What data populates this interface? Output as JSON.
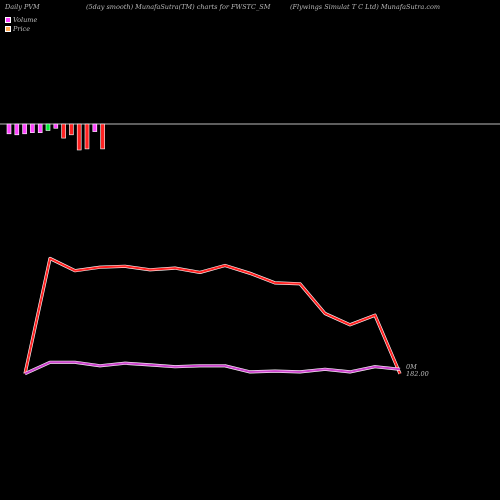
{
  "header": {
    "left": "Daily PVM",
    "center": "(5day smooth) MunafaSutra(TM) charts for FWSTC_SM",
    "right": "(Flywings Simulat T C Ltd) MunafaSutra.com"
  },
  "legend": [
    {
      "label": "Volume",
      "color": "#ff44ff"
    },
    {
      "label": "Price",
      "color": "#ffaa55"
    }
  ],
  "chart_data": {
    "type": "line",
    "x": [
      1,
      2,
      3,
      4,
      5,
      6,
      7,
      8,
      9,
      10,
      11,
      12,
      13,
      14,
      15,
      16
    ],
    "series": [
      {
        "color": "#ff2222",
        "values": [
          182.0,
          195.2,
          193.8,
          194.2,
          194.3,
          193.9,
          194.1,
          193.6,
          194.4,
          193.5,
          192.4,
          192.3,
          188.9,
          187.6,
          188.7,
          182.0
        ]
      },
      {
        "color": "#cc44cc",
        "values": [
          182.0,
          183.3,
          183.3,
          182.9,
          183.2,
          183.0,
          182.8,
          182.9,
          182.9,
          182.2,
          182.3,
          182.2,
          182.5,
          182.2,
          182.8,
          182.5
        ]
      }
    ],
    "ylim": [
      174.4,
      201.9
    ],
    "volume_bars": [
      {
        "value": -0.9,
        "color": "#ff44ff"
      },
      {
        "value": -1.0,
        "color": "#ff44ff"
      },
      {
        "value": -0.9,
        "color": "#ff44ff"
      },
      {
        "value": -0.8,
        "color": "#ff44ff"
      },
      {
        "value": -0.8,
        "color": "#ff44ff"
      },
      {
        "value": -0.6,
        "color": "#00ee33"
      },
      {
        "value": -0.4,
        "color": "#ff44ff"
      },
      {
        "value": -1.3,
        "color": "#ff2222"
      },
      {
        "value": -1.0,
        "color": "#ff2222"
      },
      {
        "value": -2.4,
        "color": "#ff2222"
      },
      {
        "value": -2.3,
        "color": "#ff2222"
      },
      {
        "value": -0.7,
        "color": "#ff44ff"
      },
      {
        "value": -2.3,
        "color": "#ff2222"
      }
    ],
    "volume_max": 2.4,
    "end_labels": {
      "volume": "0M",
      "price": "182.00"
    },
    "grid": false
  }
}
